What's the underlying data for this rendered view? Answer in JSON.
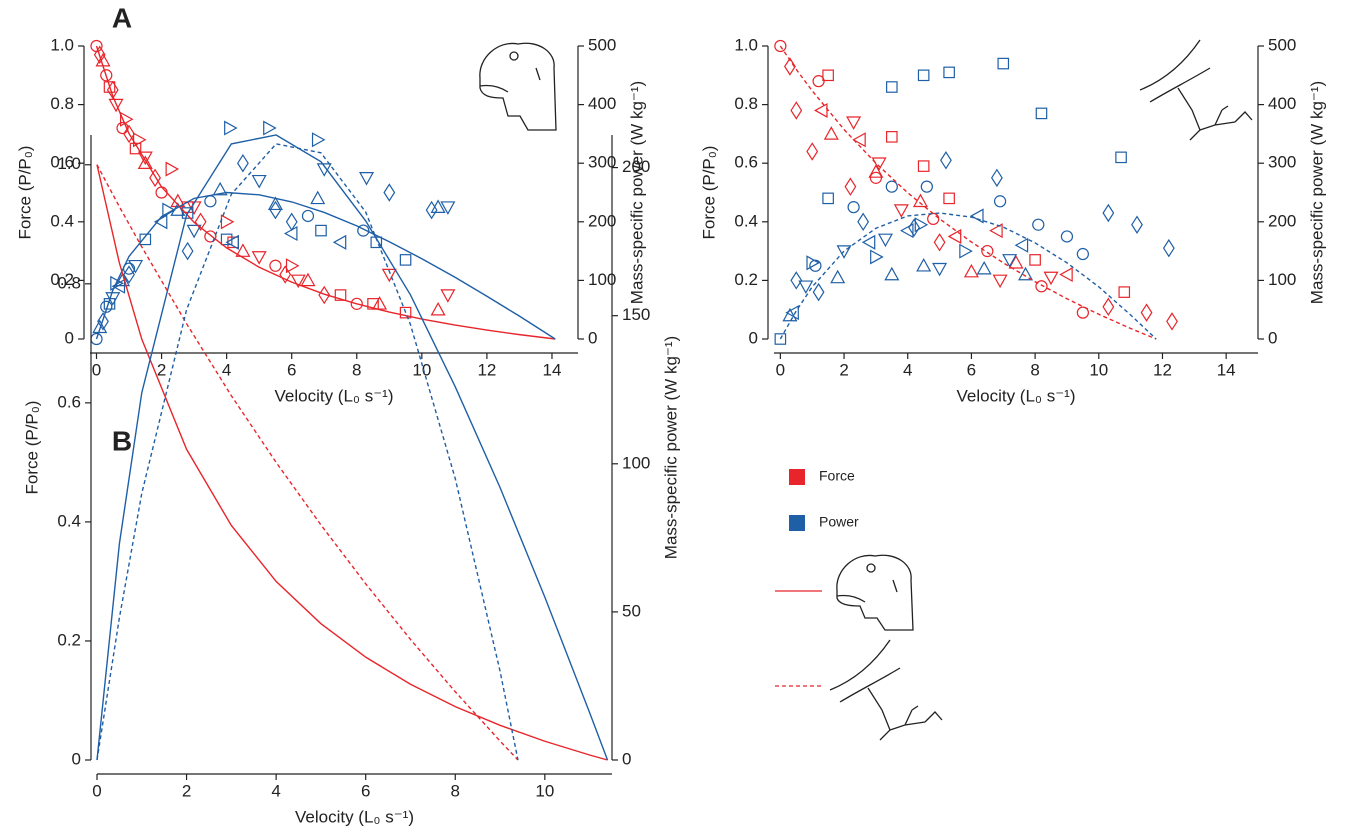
{
  "chart_data": [
    {
      "type": "scatter",
      "panel_label": "A",
      "x_label": "Velocity (L₀ s⁻¹)",
      "y_label": "Force (P/P₀)",
      "y2_label": "Mass-specific power (W kg⁻¹)",
      "xlim": [
        -0.2,
        14.8
      ],
      "xticks": [
        0,
        2,
        4,
        6,
        8,
        10,
        12,
        14
      ],
      "ylim": [
        0,
        1
      ],
      "yticks": [
        0,
        0.2,
        0.4,
        0.6,
        0.8,
        {
          "value": 1,
          "label": "1.0"
        }
      ],
      "y2lim": [
        0,
        500
      ],
      "y2ticks": [
        0,
        100,
        200,
        300,
        400,
        500
      ],
      "series": [
        {
          "color": "#e8252b",
          "marker": "circle",
          "x": [
            0,
            0.3,
            0.8,
            2,
            3.5,
            5.5,
            8
          ],
          "values": [
            1,
            0.9,
            0.72,
            0.5,
            0.35,
            0.25,
            0.12
          ]
        },
        {
          "color": "#e8252b",
          "marker": "triangle-up",
          "x": [
            0.2,
            1.5,
            2.5,
            4.5,
            6.5,
            8.7,
            10.5
          ],
          "values": [
            0.95,
            0.6,
            0.47,
            0.3,
            0.2,
            0.12,
            0.1
          ]
        },
        {
          "color": "#e8252b",
          "marker": "diamond",
          "x": [
            0.1,
            0.5,
            1,
            1.8,
            3.2,
            5.8,
            7
          ],
          "values": [
            0.97,
            0.85,
            0.7,
            0.55,
            0.4,
            0.22,
            0.15
          ]
        },
        {
          "color": "#e8252b",
          "marker": "square",
          "x": [
            0.4,
            1.2,
            2.8,
            4.2,
            7.5,
            8.5,
            9.5
          ],
          "values": [
            0.86,
            0.65,
            0.45,
            0.33,
            0.15,
            0.12,
            0.09
          ]
        },
        {
          "color": "#e8252b",
          "marker": "triangle-down",
          "x": [
            0.6,
            1.5,
            3,
            5,
            6.2,
            9,
            10.8
          ],
          "values": [
            0.8,
            0.62,
            0.45,
            0.28,
            0.2,
            0.22,
            0.15
          ]
        },
        {
          "color": "#e8252b",
          "marker": "triangle-right",
          "x": [
            0.9,
            1.3,
            2.3,
            4,
            6
          ],
          "values": [
            0.75,
            0.68,
            0.58,
            0.4,
            0.25
          ]
        },
        {
          "color": "#1f5fa6",
          "marker": "circle",
          "axis": "y2",
          "x": [
            0,
            0.3,
            1,
            3.5,
            6.5,
            8.2
          ],
          "values": [
            0,
            55,
            120,
            235,
            210,
            185
          ]
        },
        {
          "color": "#1f5fa6",
          "marker": "triangle-up",
          "axis": "y2",
          "x": [
            0.1,
            0.8,
            2.5,
            3.8,
            5.5,
            6.8,
            10.5
          ],
          "values": [
            20,
            100,
            220,
            255,
            230,
            240,
            225
          ]
        },
        {
          "color": "#1f5fa6",
          "marker": "diamond",
          "axis": "y2",
          "x": [
            0.2,
            1,
            2.8,
            4.5,
            5.5,
            6,
            9,
            10.3
          ],
          "values": [
            30,
            110,
            150,
            300,
            220,
            200,
            250,
            220
          ]
        },
        {
          "color": "#1f5fa6",
          "marker": "square",
          "axis": "y2",
          "x": [
            0.4,
            1.5,
            2.8,
            4,
            6.9,
            8.6,
            9.5
          ],
          "values": [
            60,
            170,
            215,
            170,
            185,
            165,
            135
          ]
        },
        {
          "color": "#1f5fa6",
          "marker": "triangle-down",
          "axis": "y2",
          "x": [
            0.5,
            1.2,
            3,
            5,
            7,
            8.3,
            10.8
          ],
          "values": [
            70,
            125,
            185,
            270,
            290,
            275,
            225
          ]
        },
        {
          "color": "#1f5fa6",
          "marker": "triangle-right",
          "axis": "y2",
          "x": [
            0.6,
            2.2,
            4.1,
            5.3,
            6.8
          ],
          "values": [
            95,
            220,
            360,
            360,
            340
          ]
        },
        {
          "color": "#1f5fa6",
          "marker": "triangle-left",
          "axis": "y2",
          "x": [
            0.7,
            2,
            4.2,
            6,
            7.5
          ],
          "values": [
            90,
            200,
            165,
            180,
            165
          ]
        },
        {
          "color": "#e8252b",
          "dash": false,
          "x": [
            0,
            0.5,
            1,
            2,
            3,
            4,
            5,
            6,
            7,
            8,
            9,
            10,
            11,
            12,
            13,
            14.1
          ],
          "values": [
            1,
            0.829,
            0.701,
            0.519,
            0.398,
            0.311,
            0.245,
            0.194,
            0.153,
            0.12,
            0.0919,
            0.0682,
            0.0479,
            0.0303,
            0.0149,
            0
          ]
        },
        {
          "color": "#1f5fa6",
          "dash": false,
          "axis": "y2",
          "x": [
            0,
            0.5,
            1,
            2,
            3,
            4,
            5,
            6,
            7,
            8,
            9,
            10,
            11,
            12,
            13,
            14.1
          ],
          "values": [
            0,
            83,
            141,
            209,
            240,
            250,
            246,
            234,
            216,
            193,
            166,
            137,
            106,
            73,
            39,
            0
          ]
        }
      ]
    },
    {
      "type": "scatter",
      "x_label": "Velocity (L₀ s⁻¹)",
      "y_label": "Force (P/P₀)",
      "y2_label": "Mass-specific power (W kg⁻¹)",
      "xlim": [
        -0.2,
        15
      ],
      "xticks": [
        0,
        2,
        4,
        6,
        8,
        10,
        12,
        14
      ],
      "ylim": [
        0,
        1
      ],
      "yticks": [
        0,
        0.2,
        0.4,
        0.6,
        0.8,
        {
          "value": 1,
          "label": "1.0"
        }
      ],
      "y2lim": [
        0,
        500
      ],
      "y2ticks": [
        0,
        100,
        200,
        300,
        400,
        500
      ],
      "series": [
        {
          "color": "#e8252b",
          "marker": "circle",
          "x": [
            0,
            1.2,
            3,
            4.8,
            6.5,
            8.2,
            9.5
          ],
          "values": [
            1,
            0.88,
            0.55,
            0.41,
            0.3,
            0.18,
            0.09
          ]
        },
        {
          "color": "#e8252b",
          "marker": "square",
          "x": [
            1.5,
            3.5,
            4.5,
            5.3,
            8,
            10.8
          ],
          "values": [
            0.9,
            0.69,
            0.59,
            0.48,
            0.27,
            0.16
          ]
        },
        {
          "color": "#e8252b",
          "marker": "diamond",
          "x": [
            0.3,
            0.5,
            1,
            2.2,
            5,
            10.3,
            11.5,
            12.3
          ],
          "values": [
            0.93,
            0.78,
            0.64,
            0.52,
            0.33,
            0.11,
            0.09,
            0.06
          ]
        },
        {
          "color": "#e8252b",
          "marker": "triangle-down",
          "x": [
            2.3,
            3.1,
            3.8,
            6.9,
            8.5
          ],
          "values": [
            0.74,
            0.6,
            0.44,
            0.2,
            0.21
          ]
        },
        {
          "color": "#e8252b",
          "marker": "triangle-left",
          "x": [
            1.3,
            2.5,
            5.5,
            6.8,
            9
          ],
          "values": [
            0.78,
            0.68,
            0.35,
            0.37,
            0.22
          ]
        },
        {
          "color": "#e8252b",
          "marker": "triangle-up",
          "x": [
            1.6,
            3,
            4.4,
            6,
            7.4
          ],
          "values": [
            0.7,
            0.57,
            0.47,
            0.23,
            0.26
          ]
        },
        {
          "color": "#1f5fa6",
          "marker": "square",
          "axis": "y2",
          "x": [
            0,
            1.5,
            3.5,
            4.5,
            5.3,
            7,
            8.2,
            10.7
          ],
          "values": [
            0,
            240,
            430,
            450,
            455,
            470,
            385,
            310
          ]
        },
        {
          "color": "#1f5fa6",
          "marker": "circle",
          "axis": "y2",
          "x": [
            1.1,
            2.3,
            3.5,
            4.6,
            6.9,
            8.1,
            9,
            9.5
          ],
          "values": [
            125,
            225,
            260,
            260,
            235,
            195,
            175,
            145
          ]
        },
        {
          "color": "#1f5fa6",
          "marker": "diamond",
          "axis": "y2",
          "x": [
            0.5,
            1.2,
            2.6,
            4.2,
            5.2,
            6.8,
            10.3,
            11.2,
            12.2
          ],
          "values": [
            100,
            80,
            200,
            190,
            305,
            275,
            215,
            195,
            155
          ]
        },
        {
          "color": "#1f5fa6",
          "marker": "triangle-up",
          "axis": "y2",
          "x": [
            0.3,
            1.8,
            3.5,
            4.5,
            6.4,
            7.7
          ],
          "values": [
            40,
            105,
            110,
            125,
            120,
            110
          ]
        },
        {
          "color": "#1f5fa6",
          "marker": "triangle-down",
          "axis": "y2",
          "x": [
            0.8,
            2,
            3.3,
            5,
            7.2
          ],
          "values": [
            90,
            150,
            170,
            120,
            135
          ]
        },
        {
          "color": "#1f5fa6",
          "marker": "triangle-left",
          "axis": "y2",
          "x": [
            0.4,
            2.8,
            4,
            6.2,
            7.6
          ],
          "values": [
            45,
            165,
            185,
            210,
            160
          ]
        },
        {
          "color": "#1f5fa6",
          "marker": "triangle-right",
          "axis": "y2",
          "x": [
            1,
            3,
            4.4,
            5.8
          ],
          "values": [
            130,
            140,
            195,
            150
          ]
        },
        {
          "color": "#e8252b",
          "dash": true,
          "x": [
            0,
            0.5,
            1,
            2,
            3,
            4,
            5,
            6,
            7,
            8,
            9,
            10,
            11,
            11.8
          ],
          "values": [
            1,
            0.92,
            0.847,
            0.715,
            0.6,
            0.499,
            0.41,
            0.331,
            0.26,
            0.1955,
            0.1373,
            0.0843,
            0.0359,
            0
          ]
        },
        {
          "color": "#1f5fa6",
          "dash": true,
          "axis": "y2",
          "x": [
            0,
            0.5,
            1,
            2,
            3,
            4,
            5,
            6,
            7,
            8,
            9,
            10,
            11,
            11.8
          ],
          "values": [
            0,
            48,
            89,
            150,
            189,
            210,
            215,
            208,
            191,
            164,
            130,
            89,
            41,
            0
          ]
        }
      ]
    },
    {
      "type": "line",
      "panel_label": "B",
      "x_label": "Velocity (L₀ s⁻¹)",
      "y_label": "Force (P/P₀)",
      "y2_label": "Mass-specific power (W kg⁻¹)",
      "xlim": [
        0,
        11.5
      ],
      "xticks": [
        0,
        2,
        4,
        6,
        8,
        10
      ],
      "ylim": [
        0,
        1.05
      ],
      "yticks": [
        0,
        0.2,
        0.4,
        0.6,
        0.8,
        {
          "value": 1,
          "label": "1.0"
        }
      ],
      "y2lim": [
        0,
        211
      ],
      "y2ticks": [
        0,
        50,
        100,
        150,
        200
      ],
      "legend": [
        {
          "label": "Force",
          "color": "#e8252b"
        },
        {
          "label": "Power",
          "color": "#1f5fa6"
        }
      ],
      "series": [
        {
          "color": "#e8252b",
          "dash": false,
          "x": [
            0,
            0.5,
            1,
            2,
            3,
            4,
            5,
            6,
            7,
            8,
            9,
            10,
            11,
            11.4
          ],
          "values": [
            1,
            0.835,
            0.707,
            0.522,
            0.394,
            0.3,
            0.229,
            0.1728,
            0.1273,
            0.0897,
            0.0583,
            0.0315,
            0.0084,
            0
          ]
        },
        {
          "color": "#e8252b",
          "dash": true,
          "x": [
            0,
            0.5,
            1,
            2,
            3,
            4,
            5,
            6,
            7,
            8,
            9,
            9.4
          ],
          "values": [
            1,
            0.9295,
            0.862,
            0.733,
            0.612,
            0.5,
            0.395,
            0.296,
            0.2025,
            0.1147,
            0.0319,
            0
          ]
        },
        {
          "color": "#1f5fa6",
          "dash": false,
          "axis": "y2",
          "x": [
            0,
            0.5,
            1,
            2,
            3,
            4,
            5,
            6,
            7,
            8,
            9,
            10,
            11,
            11.4
          ],
          "values": [
            0,
            73,
            124,
            184,
            208,
            211,
            202,
            182,
            157,
            126,
            92,
            55,
            16,
            0
          ]
        },
        {
          "color": "#1f5fa6",
          "dash": true,
          "axis": "y2",
          "x": [
            0,
            0.5,
            1,
            2,
            3,
            4,
            5,
            6,
            7,
            8,
            9,
            9.4
          ],
          "values": [
            0,
            48,
            90,
            152,
            191,
            208,
            205,
            185,
            147,
            95,
            30,
            0
          ]
        }
      ]
    }
  ]
}
